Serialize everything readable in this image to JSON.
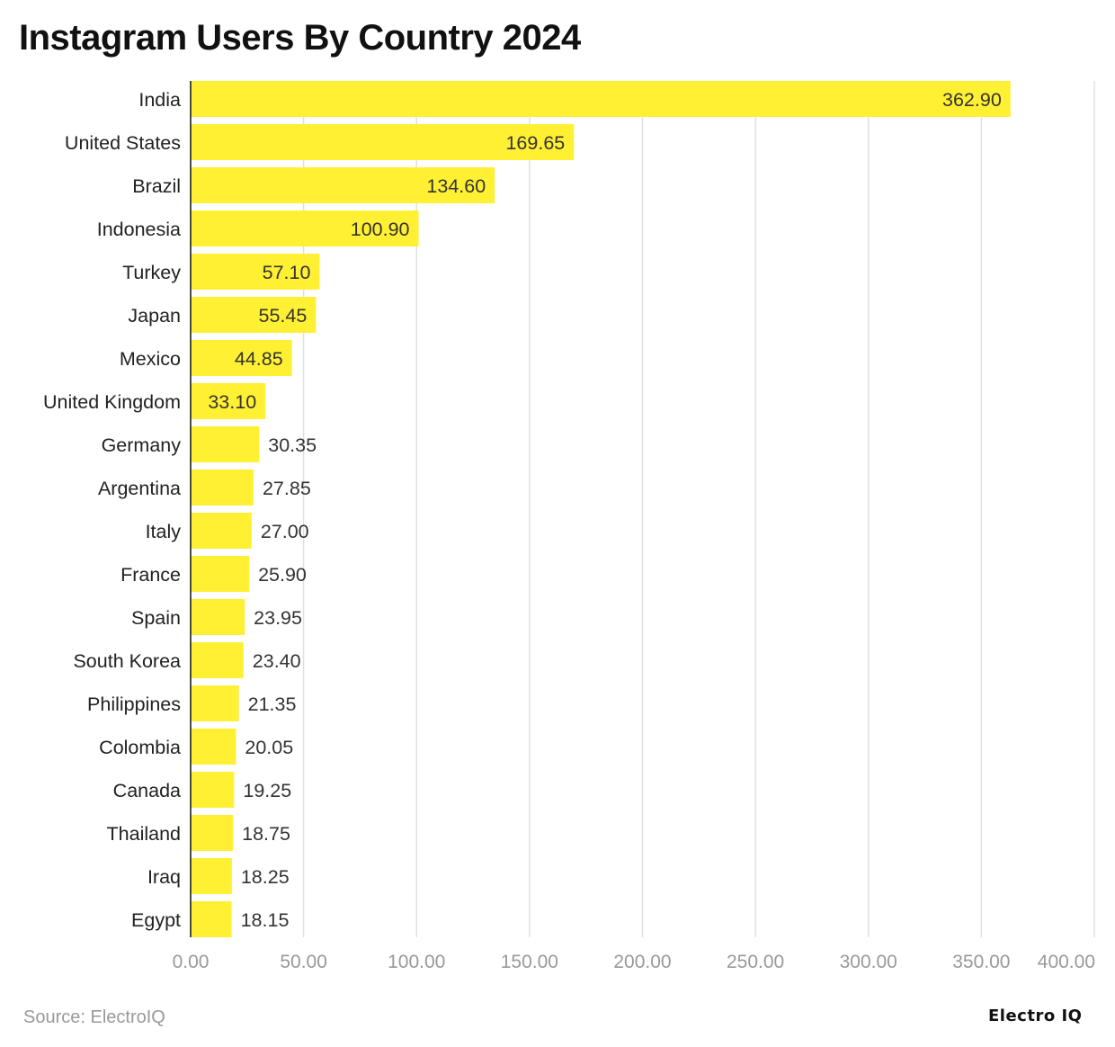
{
  "title": "Instagram Users By Country 2024",
  "source": "Source: ElectroIQ",
  "logo": "Electro IQ",
  "colors": {
    "bar": "#FFF033",
    "grid": "#E0E0E0",
    "axis_text": "#999999"
  },
  "chart_data": {
    "type": "bar",
    "orientation": "horizontal",
    "title": "Instagram Users By Country 2024",
    "categories": [
      "India",
      "United States",
      "Brazil",
      "Indonesia",
      "Turkey",
      "Japan",
      "Mexico",
      "United Kingdom",
      "Germany",
      "Argentina",
      "Italy",
      "France",
      "Spain",
      "South Korea",
      "Philippines",
      "Colombia",
      "Canada",
      "Thailand",
      "Iraq",
      "Egypt"
    ],
    "values": [
      362.9,
      169.65,
      134.6,
      100.9,
      57.1,
      55.45,
      44.85,
      33.1,
      30.35,
      27.85,
      27.0,
      25.9,
      23.95,
      23.4,
      21.35,
      20.05,
      19.25,
      18.75,
      18.25,
      18.15
    ],
    "data_labels": [
      "362.90",
      "169.65",
      "134.60",
      "100.90",
      "57.10",
      "55.45",
      "44.85",
      "33.10",
      "30.35",
      "27.85",
      "27.00",
      "25.90",
      "23.95",
      "23.40",
      "21.35",
      "20.05",
      "19.25",
      "18.75",
      "18.25",
      "18.15"
    ],
    "xlim": [
      0,
      400
    ],
    "xticks": [
      0,
      50,
      100,
      150,
      200,
      250,
      300,
      350,
      400
    ],
    "xtick_labels": [
      "0.00",
      "50.00",
      "100.00",
      "150.00",
      "200.00",
      "250.00",
      "300.00",
      "350.00",
      "400.00"
    ],
    "grid": "vertical",
    "xlabel": "",
    "ylabel": ""
  }
}
